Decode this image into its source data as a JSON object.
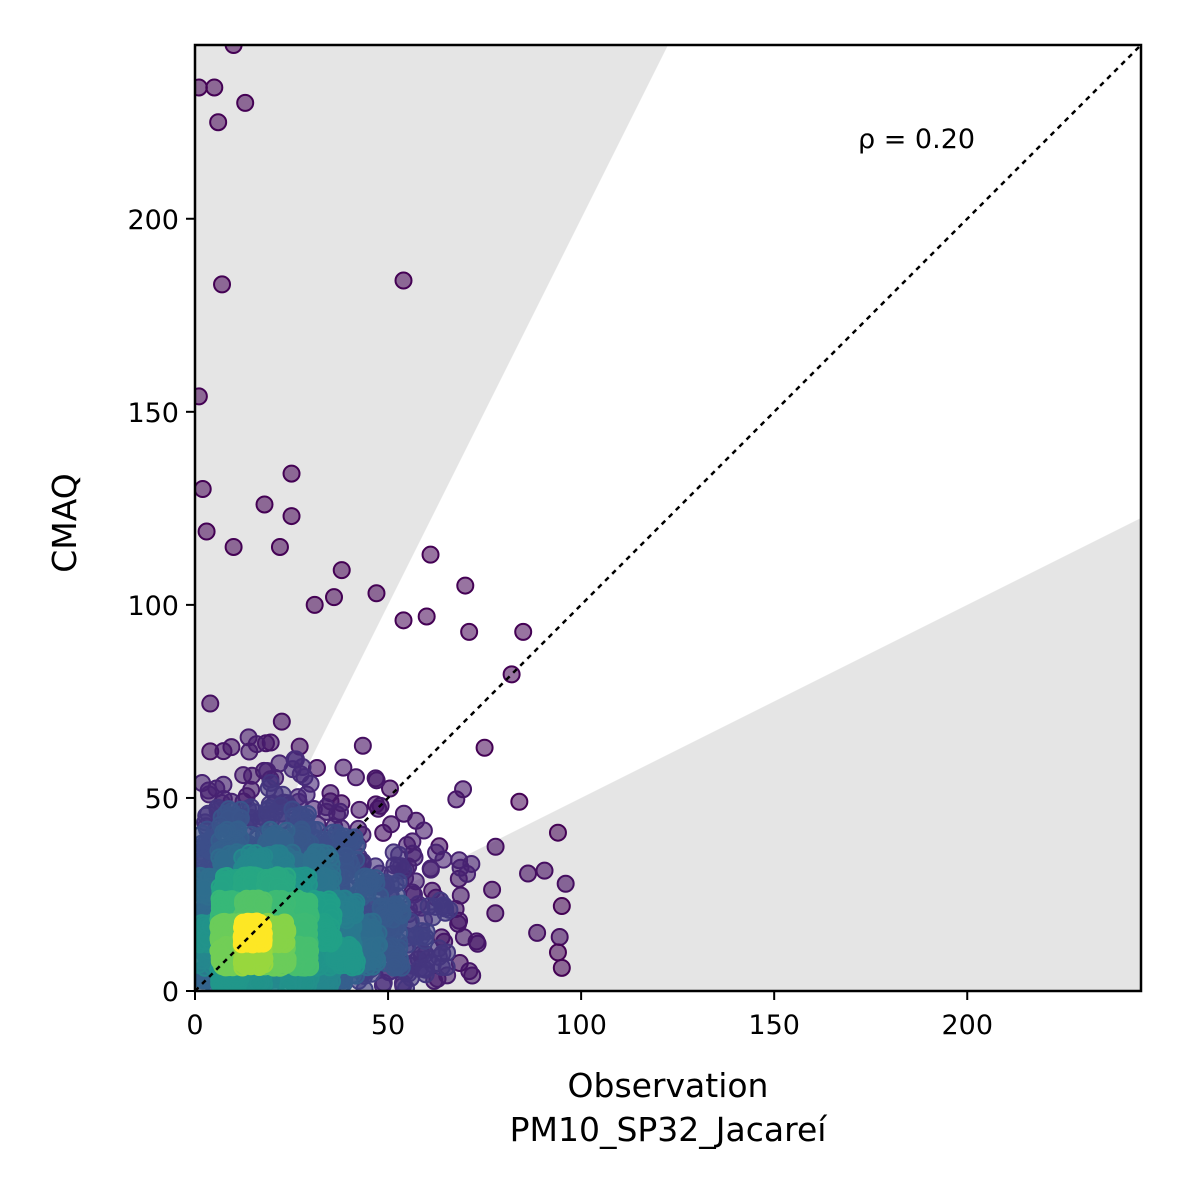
{
  "chart_data": {
    "type": "scatter",
    "xlabel": "Observation",
    "xlabel_sub": "PM10_SP32_Jacareí",
    "ylabel": "CMAQ",
    "xlim": [
      0,
      245
    ],
    "ylim": [
      0,
      245
    ],
    "xticks": [
      0,
      50,
      100,
      150,
      200
    ],
    "yticks": [
      0,
      50,
      100,
      150,
      200
    ],
    "grid": false,
    "legend": "none",
    "annotation": "ρ = 0.20",
    "reference_line": {
      "type": "1:1",
      "style": "dotted",
      "color": "#000000"
    },
    "shaded_regions": [
      {
        "description": "above factor-2 line",
        "slope_min": 2,
        "color": "#e5e5e5"
      },
      {
        "description": "below factor-0.5 line",
        "slope_max": 0.5,
        "color": "#e5e5e5"
      }
    ],
    "colormap": "viridis (point density)",
    "point_colors": {
      "low_density": "#440154",
      "high_density": "#fde725"
    },
    "points_sample": [
      {
        "x": 1,
        "y": 234
      },
      {
        "x": 5,
        "y": 234
      },
      {
        "x": 10,
        "y": 245
      },
      {
        "x": 6,
        "y": 225
      },
      {
        "x": 13,
        "y": 230
      },
      {
        "x": 7,
        "y": 183
      },
      {
        "x": 54,
        "y": 184
      },
      {
        "x": 1,
        "y": 154
      },
      {
        "x": 25,
        "y": 134
      },
      {
        "x": 2,
        "y": 130
      },
      {
        "x": 18,
        "y": 126
      },
      {
        "x": 25,
        "y": 123
      },
      {
        "x": 3,
        "y": 119
      },
      {
        "x": 10,
        "y": 115
      },
      {
        "x": 22,
        "y": 115
      },
      {
        "x": 61,
        "y": 113
      },
      {
        "x": 38,
        "y": 109
      },
      {
        "x": 70,
        "y": 105
      },
      {
        "x": 47,
        "y": 103
      },
      {
        "x": 71,
        "y": 93
      },
      {
        "x": 85,
        "y": 93
      },
      {
        "x": 82,
        "y": 82
      },
      {
        "x": 75,
        "y": 63
      },
      {
        "x": 84,
        "y": 49
      },
      {
        "x": 94,
        "y": 41
      },
      {
        "x": 95,
        "y": 22
      },
      {
        "x": 94,
        "y": 10
      },
      {
        "x": 95,
        "y": 6
      },
      {
        "x": 60,
        "y": 97
      },
      {
        "x": 54,
        "y": 96
      },
      {
        "x": 31,
        "y": 100
      },
      {
        "x": 36,
        "y": 102
      }
    ]
  }
}
